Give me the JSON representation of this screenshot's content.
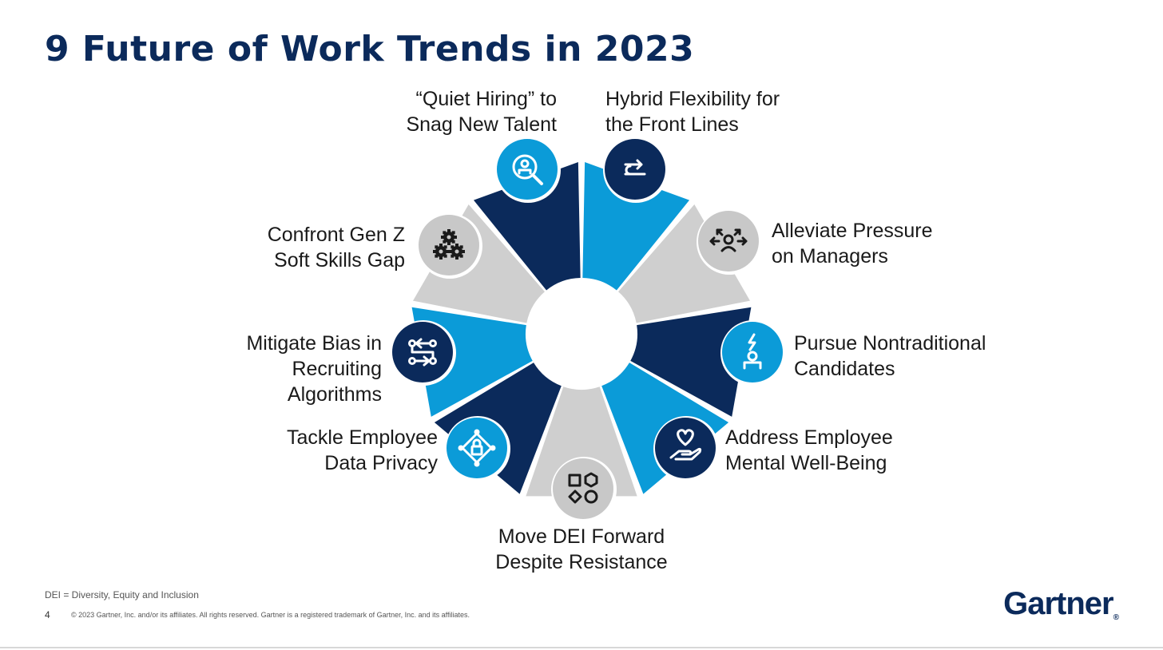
{
  "title": "9 Future of Work Trends in 2023",
  "colors": {
    "navy": "#0b2a5b",
    "blue": "#0b9bd8",
    "gray": "#cfcfcf",
    "icon_gray_bg": "#c8c8c8"
  },
  "trends": [
    {
      "label": "Hybrid Flexibility for\nthe Front Lines",
      "segment_color": "blue",
      "icon_bg": "navy",
      "icon": "route-arrows-icon"
    },
    {
      "label": "Alleviate Pressure\non Managers",
      "segment_color": "gray",
      "icon_bg": "gray",
      "icon": "manager-pressure-icon"
    },
    {
      "label": "Pursue Nontraditional\nCandidates",
      "segment_color": "navy",
      "icon_bg": "blue",
      "icon": "candidate-spark-icon"
    },
    {
      "label": "Address Employee\nMental Well-Being",
      "segment_color": "blue",
      "icon_bg": "navy",
      "icon": "heart-hand-icon"
    },
    {
      "label": "Move DEI Forward\nDespite Resistance",
      "segment_color": "gray",
      "icon_bg": "gray",
      "icon": "shapes-icon"
    },
    {
      "label": "Tackle Employee\nData Privacy",
      "segment_color": "navy",
      "icon_bg": "blue",
      "icon": "lock-network-icon"
    },
    {
      "label": "Mitigate Bias in\nRecruiting\nAlgorithms",
      "segment_color": "blue",
      "icon_bg": "navy",
      "icon": "algorithm-flow-icon"
    },
    {
      "label": "Confront Gen Z\nSoft Skills Gap",
      "segment_color": "gray",
      "icon_bg": "gray",
      "icon": "gears-icon"
    },
    {
      "label": "“Quiet Hiring” to\nSnag New Talent",
      "segment_color": "navy",
      "icon_bg": "blue",
      "icon": "search-person-icon"
    }
  ],
  "footnote": "DEI = Diversity, Equity and Inclusion",
  "page_number": "4",
  "copyright": "© 2023 Gartner, Inc. and/or its affiliates. All rights reserved. Gartner is a registered trademark of Gartner, Inc. and its affiliates.",
  "logo": {
    "text": "Gartner",
    "mark": "®"
  }
}
